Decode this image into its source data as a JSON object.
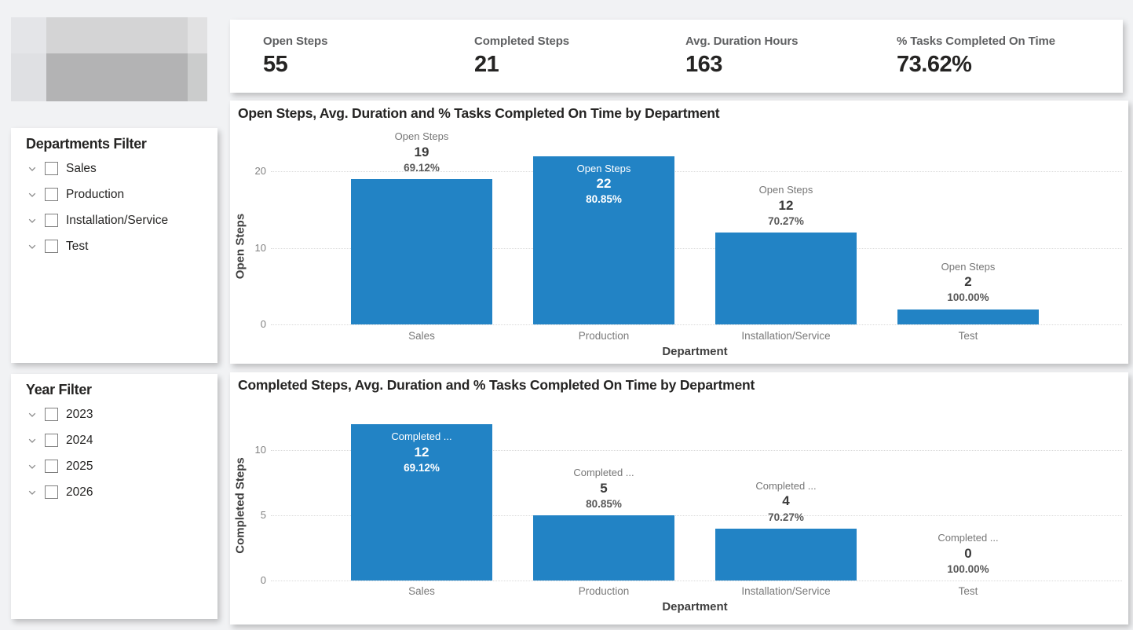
{
  "page": {
    "background": "#f1f2f4",
    "accent_blue": "#2283C5"
  },
  "kpis": [
    {
      "label": "Open Steps",
      "value": "55"
    },
    {
      "label": "Completed Steps",
      "value": "21"
    },
    {
      "label": "Avg. Duration Hours",
      "value": "163"
    },
    {
      "label": "% Tasks Completed On Time",
      "value": "73.62%"
    }
  ],
  "filters": [
    {
      "title": "Departments Filter",
      "items": [
        {
          "label": "Sales",
          "checked": false
        },
        {
          "label": "Production",
          "checked": false
        },
        {
          "label": "Installation/Service",
          "checked": false
        },
        {
          "label": "Test",
          "checked": false
        }
      ]
    },
    {
      "title": "Year Filter",
      "items": [
        {
          "label": "2023",
          "checked": false
        },
        {
          "label": "2024",
          "checked": false
        },
        {
          "label": "2025",
          "checked": false
        },
        {
          "label": "2026",
          "checked": false
        }
      ]
    }
  ],
  "chart_data": [
    {
      "type": "bar",
      "title": "Open Steps, Avg. Duration and % Tasks Completed On Time by Department",
      "categories": [
        "Sales",
        "Production",
        "Installation/Service",
        "Test"
      ],
      "values": [
        19,
        22,
        12,
        2
      ],
      "percent_labels": [
        "69.12%",
        "80.85%",
        "70.27%",
        "100.00%"
      ],
      "series_label_display": "Open Steps",
      "xlabel": "Department",
      "ylabel": "Open Steps",
      "yticks": [
        0,
        10,
        20
      ],
      "ylim": [
        0,
        23
      ],
      "grid": "dotted",
      "legend": "none",
      "bar_color": "#2283C5"
    },
    {
      "type": "bar",
      "title": "Completed Steps, Avg. Duration and % Tasks Completed On Time by Department",
      "categories": [
        "Sales",
        "Production",
        "Installation/Service",
        "Test"
      ],
      "values": [
        12,
        5,
        4,
        0
      ],
      "percent_labels": [
        "69.12%",
        "80.85%",
        "70.27%",
        "100.00%"
      ],
      "series_label_display": "Completed ...",
      "xlabel": "Department",
      "ylabel": "Completed Steps",
      "yticks": [
        0,
        5,
        10
      ],
      "ylim": [
        0,
        12.5
      ],
      "grid": "dotted",
      "legend": "none",
      "bar_color": "#2283C5"
    }
  ]
}
